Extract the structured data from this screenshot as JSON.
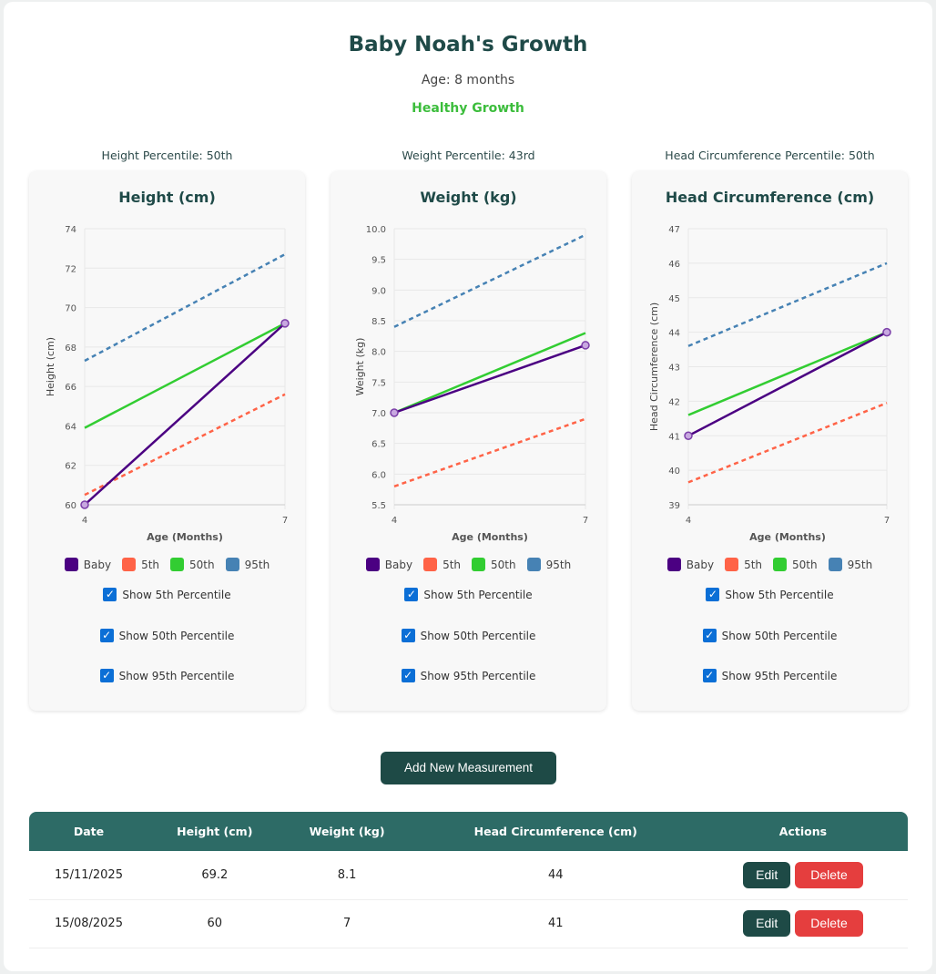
{
  "header": {
    "title": "Baby Noah's Growth",
    "age": "Age: 8 months",
    "status": "Healthy Growth"
  },
  "percentiles": [
    "Height Percentile: 50th",
    "Weight Percentile: 43rd",
    "Head Circumference Percentile: 50th"
  ],
  "colors": {
    "baby": "#4b0082",
    "p5": "#ff6347",
    "p50": "#32cd32",
    "p95": "#4682b4",
    "header": "#2d6b66",
    "button": "#1e4a46",
    "delete": "#e53e3e"
  },
  "legend": [
    "Baby",
    "5th",
    "50th",
    "95th"
  ],
  "checkboxes": [
    {
      "label": "Show 5th Percentile",
      "checked": true
    },
    {
      "label": "Show 50th Percentile",
      "checked": true
    },
    {
      "label": "Show 95th Percentile",
      "checked": true
    }
  ],
  "chart_data": [
    {
      "type": "line",
      "title": "Height (cm)",
      "xlabel": "Age (Months)",
      "ylabel": "Height (cm)",
      "x": [
        4,
        7
      ],
      "ylim": [
        60,
        74
      ],
      "yticks": [
        "60",
        "62",
        "64",
        "66",
        "68",
        "70",
        "72",
        "74"
      ],
      "xticks": [
        "4",
        "7"
      ],
      "grid": true,
      "legend_position": "bottom",
      "series": [
        {
          "name": "Baby",
          "values": [
            60,
            69.2
          ]
        },
        {
          "name": "5th",
          "values": [
            60.5,
            65.6
          ]
        },
        {
          "name": "50th",
          "values": [
            63.9,
            69.2
          ]
        },
        {
          "name": "95th",
          "values": [
            67.3,
            72.7
          ]
        }
      ]
    },
    {
      "type": "line",
      "title": "Weight (kg)",
      "xlabel": "Age (Months)",
      "ylabel": "Weight (kg)",
      "x": [
        4,
        7
      ],
      "ylim": [
        5.5,
        10
      ],
      "yticks": [
        "5.5",
        "6.0",
        "6.5",
        "7.0",
        "7.5",
        "8.0",
        "8.5",
        "9.0",
        "9.5",
        "10.0"
      ],
      "xticks": [
        "4",
        "7"
      ],
      "grid": true,
      "legend_position": "bottom",
      "series": [
        {
          "name": "Baby",
          "values": [
            7,
            8.1
          ]
        },
        {
          "name": "5th",
          "values": [
            5.8,
            6.9
          ]
        },
        {
          "name": "50th",
          "values": [
            7.0,
            8.3
          ]
        },
        {
          "name": "95th",
          "values": [
            8.4,
            9.9
          ]
        }
      ]
    },
    {
      "type": "line",
      "title": "Head Circumference (cm)",
      "xlabel": "Age (Months)",
      "ylabel": "Head Circumference (cm)",
      "x": [
        4,
        7
      ],
      "ylim": [
        39,
        47
      ],
      "yticks": [
        "39",
        "40",
        "41",
        "42",
        "43",
        "44",
        "45",
        "46",
        "47"
      ],
      "xticks": [
        "4",
        "7"
      ],
      "grid": true,
      "legend_position": "bottom",
      "series": [
        {
          "name": "Baby",
          "values": [
            41,
            44
          ]
        },
        {
          "name": "5th",
          "values": [
            39.65,
            41.95
          ]
        },
        {
          "name": "50th",
          "values": [
            41.6,
            44.0
          ]
        },
        {
          "name": "95th",
          "values": [
            43.6,
            46.0
          ]
        }
      ]
    }
  ],
  "add_button": "Add New Measurement",
  "table": {
    "headers": [
      "Date",
      "Height (cm)",
      "Weight (kg)",
      "Head Circumference (cm)",
      "Actions"
    ],
    "rows": [
      {
        "date": "15/11/2025",
        "height": "69.2",
        "weight": "8.1",
        "head": "44"
      },
      {
        "date": "15/08/2025",
        "height": "60",
        "weight": "7",
        "head": "41"
      }
    ],
    "edit": "Edit",
    "delete": "Delete"
  }
}
